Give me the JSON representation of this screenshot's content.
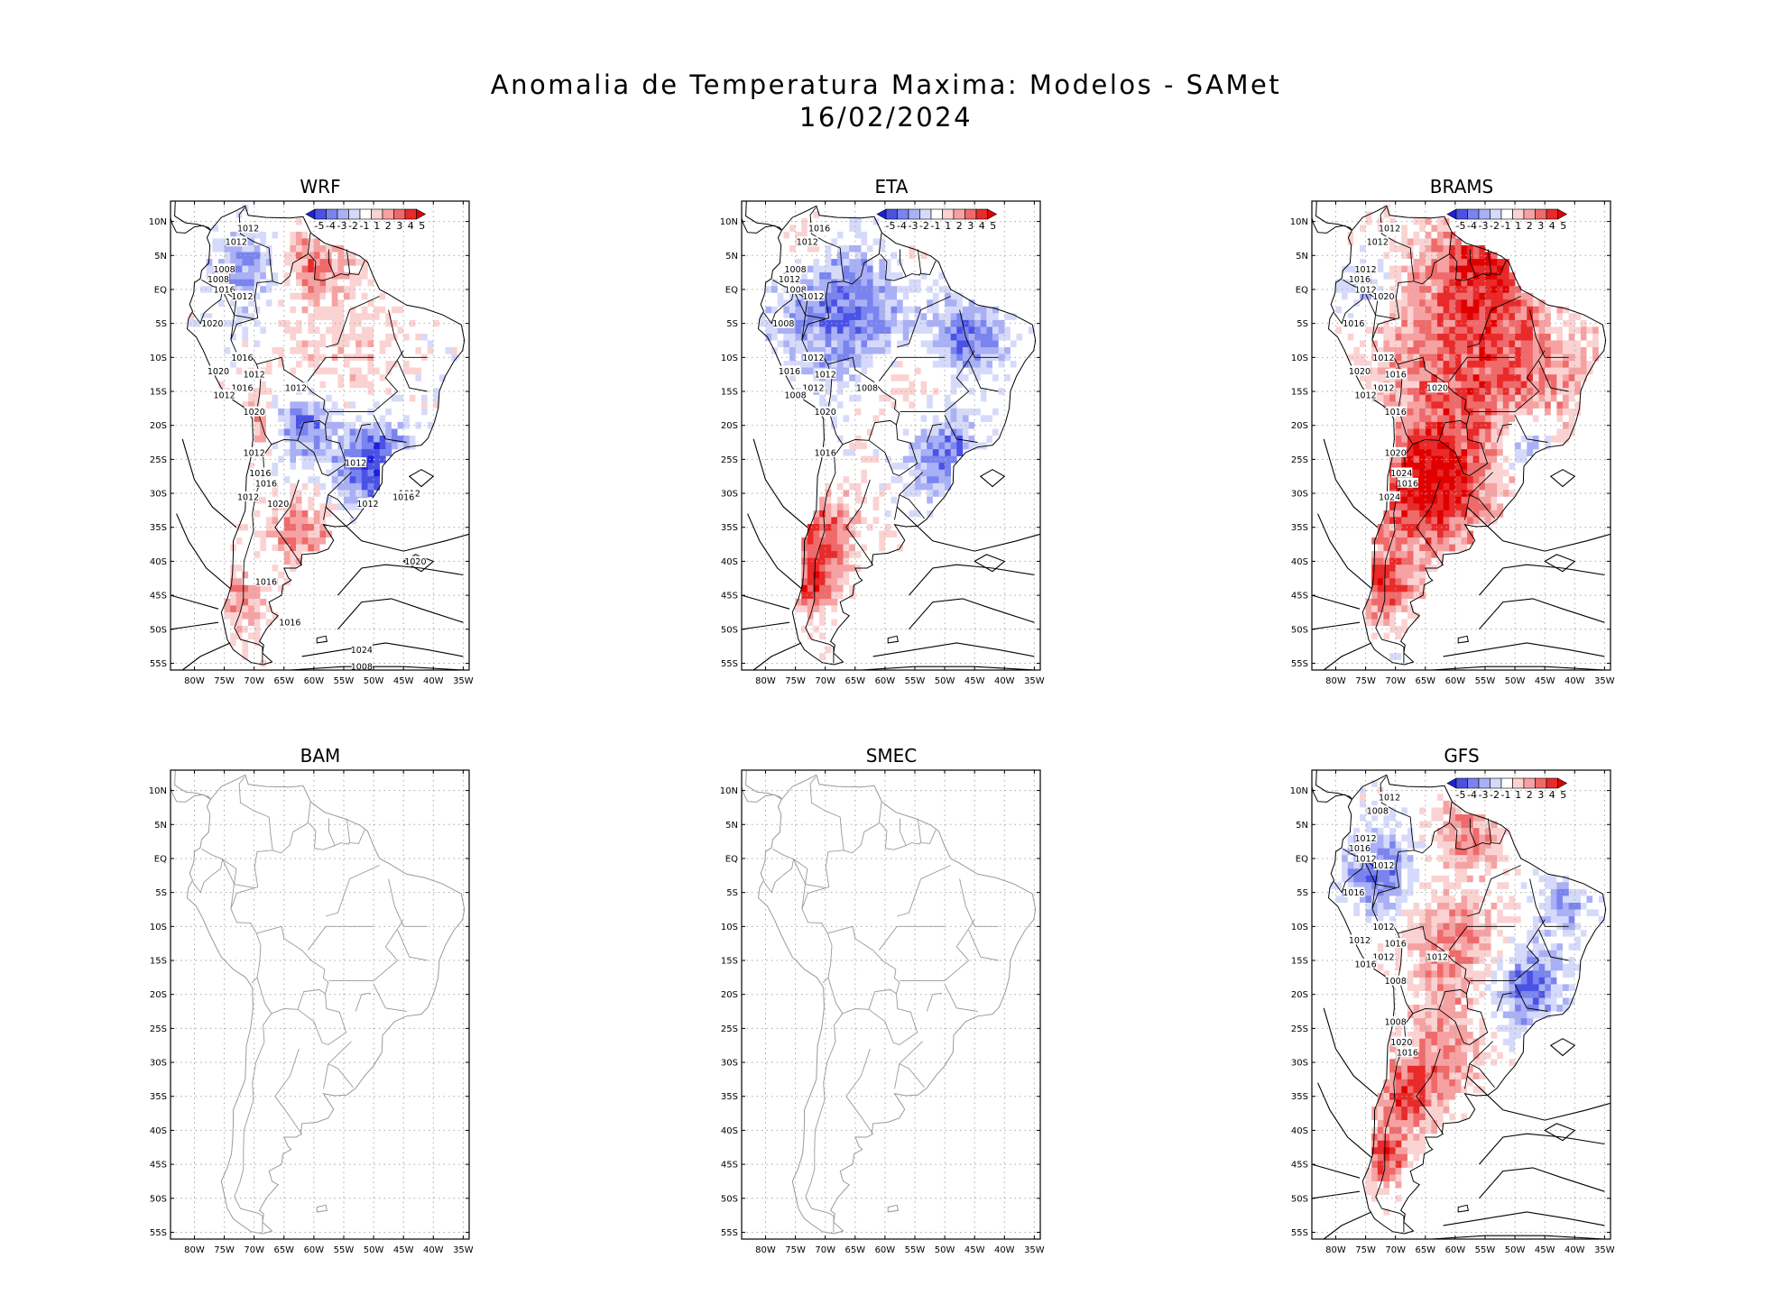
{
  "figure": {
    "title_line1": "Anomalia de Temperatura Maxima: Modelos - SAMet",
    "title_line2": "16/02/2024"
  },
  "axes": {
    "lat_ticks": [
      "10N",
      "5N",
      "EQ",
      "5S",
      "10S",
      "15S",
      "20S",
      "25S",
      "30S",
      "35S",
      "40S",
      "45S",
      "50S",
      "55S"
    ],
    "lon_ticks": [
      "80W",
      "75W",
      "70W",
      "65W",
      "60W",
      "55W",
      "50W",
      "45W",
      "40W",
      "35W"
    ],
    "lat_values": [
      10,
      5,
      0,
      -5,
      -10,
      -15,
      -20,
      -25,
      -30,
      -35,
      -40,
      -45,
      -50,
      -55
    ],
    "lon_values": [
      -80,
      -75,
      -70,
      -65,
      -60,
      -55,
      -50,
      -45,
      -40,
      -35
    ],
    "lon_range": [
      -84,
      -34
    ],
    "lat_range": [
      -56,
      13
    ],
    "grid": "dotted"
  },
  "colorbar": {
    "labels": [
      "-5",
      "-4",
      "-3",
      "-2",
      "-1",
      "1",
      "2",
      "3",
      "4",
      "5"
    ],
    "colors": [
      "#1f1fd8",
      "#4a52e6",
      "#7a84ef",
      "#a9b0f5",
      "#d6dafa",
      "#ffffff",
      "#fbd2d2",
      "#f6a2a2",
      "#ef6a6a",
      "#e82a2a",
      "#e00000"
    ]
  },
  "colors": {
    "warm": "#e82020",
    "cold": "#1a2ad6",
    "coast_empty": "#9a9a9a",
    "contour": "#000000"
  },
  "panels": [
    {
      "name": "WRF",
      "has_data": true,
      "isobar_labels": [
        "1012",
        "1012",
        "1008",
        "1008",
        "1016",
        "1012",
        "1020",
        "1016",
        "1020",
        "1012",
        "1016",
        "1012",
        "1012",
        "1020",
        "1012",
        "1016",
        "1016",
        "1012",
        "1020",
        "1012",
        "1012",
        "1012",
        "1016",
        "1016",
        "1024",
        "1008",
        "1020",
        "1016"
      ]
    },
    {
      "name": "ETA",
      "has_data": true,
      "isobar_labels": [
        "1016",
        "1012",
        "1008",
        "1012",
        "1008",
        "1012",
        "1008",
        "1012",
        "1016",
        "1012",
        "1012",
        "1008",
        "1008",
        "1020",
        "1016"
      ]
    },
    {
      "name": "BRAMS",
      "has_data": true,
      "isobar_labels": [
        "1012",
        "1012",
        "1012",
        "1016",
        "1012",
        "1020",
        "1016",
        "1012",
        "1020",
        "1016",
        "1012",
        "1012",
        "1020",
        "1016",
        "1020",
        "1024",
        "1016",
        "1024"
      ]
    },
    {
      "name": "BAM",
      "has_data": false,
      "isobar_labels": []
    },
    {
      "name": "SMEC",
      "has_data": false,
      "isobar_labels": []
    },
    {
      "name": "GFS",
      "has_data": true,
      "isobar_labels": [
        "1012",
        "1008",
        "1012",
        "1016",
        "1012",
        "1012",
        "1016",
        "1012",
        "1012",
        "1016",
        "1012",
        "1016",
        "1012",
        "1008",
        "1008",
        "1020",
        "1016"
      ]
    }
  ]
}
